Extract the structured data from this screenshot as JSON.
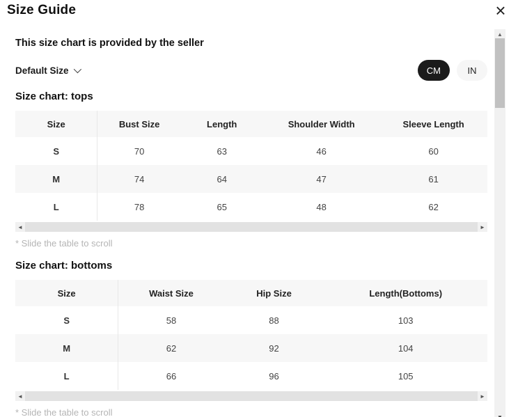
{
  "modal": {
    "title": "Size Guide"
  },
  "seller_note": "This size chart is provided by the seller",
  "size_selector": {
    "label": "Default Size"
  },
  "unit_toggle": {
    "options": [
      {
        "label": "CM",
        "selected": true
      },
      {
        "label": "IN",
        "selected": false
      }
    ]
  },
  "tables": [
    {
      "title": "Size chart: tops",
      "columns": [
        "Size",
        "Bust Size",
        "Length",
        "Shoulder Width",
        "Sleeve Length"
      ],
      "rows": [
        [
          "S",
          "70",
          "63",
          "46",
          "60"
        ],
        [
          "M",
          "74",
          "64",
          "47",
          "61"
        ],
        [
          "L",
          "78",
          "65",
          "48",
          "62"
        ]
      ],
      "hint": "* Slide the table to scroll"
    },
    {
      "title": "Size chart: bottoms",
      "columns": [
        "Size",
        "Waist Size",
        "Hip Size",
        "Length(Bottoms)"
      ],
      "rows": [
        [
          "S",
          "58",
          "88",
          "103"
        ],
        [
          "M",
          "62",
          "92",
          "104"
        ],
        [
          "L",
          "66",
          "96",
          "105"
        ]
      ],
      "hint": "* Slide the table to scroll"
    }
  ],
  "icons": {
    "close": "×",
    "chevron_down": "chevron-down",
    "scroll_up": "▲",
    "scroll_down": "▼",
    "scroll_left": "◄",
    "scroll_right": "►"
  },
  "colors": {
    "selected_unit_bg": "#1b1b1b",
    "selected_unit_text": "#ffffff",
    "row_stripe": "#f7f7f7",
    "hint_text": "#b5b5b5"
  }
}
